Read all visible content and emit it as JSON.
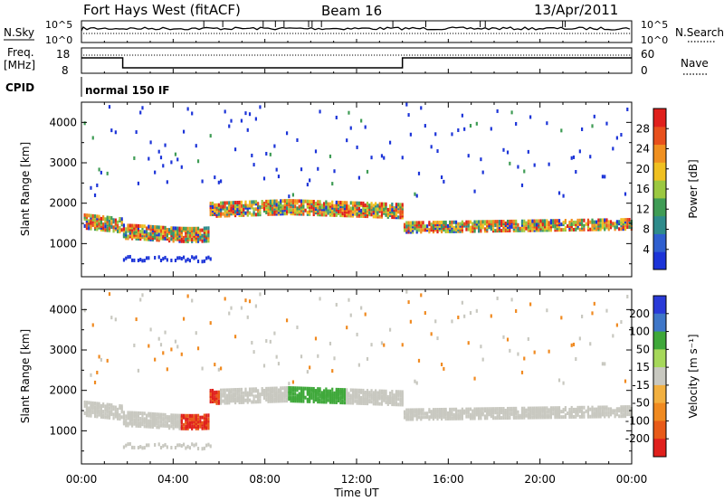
{
  "header": {
    "station": "Fort Hays West (fitACF)",
    "beam": "Beam 16",
    "date": "13/Apr/2011"
  },
  "status_panels": {
    "nsky_label": "N.Sky",
    "nsky_top": "10^5",
    "nsky_bottom": "10^0",
    "nsearch_label": "N.Search",
    "nsearch_top": "10^5",
    "nsearch_bottom": "10^0",
    "freq_label": "Freq.",
    "freq_unit": "[MHz]",
    "freq_top": "18",
    "freq_bottom": "8",
    "nave_label": "Nave",
    "nave_top": "60",
    "nave_bottom": "0",
    "cpid_label": "CPID",
    "cpid_value": "normal 150 IF"
  },
  "colors": {
    "power_scale": [
      "#1c34d8",
      "#2f5fcf",
      "#2e8b8b",
      "#3f9c55",
      "#9bc840",
      "#f0c020",
      "#f09020",
      "#e8501c",
      "#e0201c"
    ],
    "velocity_scale": [
      "#2a3bd8",
      "#3f77c8",
      "#3fa83a",
      "#a6d85a",
      "#c8c8c0",
      "#f2b040",
      "#f08a20",
      "#e85a18",
      "#e0201c"
    ]
  },
  "chart_data": [
    {
      "type": "heatmap",
      "panel": "power",
      "ylabel": "Slant Range [km]",
      "xlabel": "",
      "y_ticks": [
        "1000",
        "2000",
        "3000",
        "4000"
      ],
      "ylim": [
        180,
        4500
      ],
      "colorbar_label": "Power [dB]",
      "colorbar_ticks": [
        "4",
        "8",
        "12",
        "16",
        "20",
        "24",
        "28"
      ],
      "colorbar_range": [
        0,
        32
      ]
    },
    {
      "type": "heatmap",
      "panel": "velocity",
      "ylabel": "Slant Range [km]",
      "xlabel": "Time UT",
      "x_ticks": [
        "00:00",
        "04:00",
        "08:00",
        "12:00",
        "16:00",
        "20:00",
        "00:00"
      ],
      "y_ticks": [
        "1000",
        "2000",
        "3000",
        "4000"
      ],
      "ylim": [
        180,
        4500
      ],
      "colorbar_label": "Velocity [m s⁻¹]",
      "colorbar_ticks": [
        "200",
        "100",
        "50",
        "15",
        "-15",
        "-50",
        "-100",
        "-200"
      ]
    }
  ]
}
